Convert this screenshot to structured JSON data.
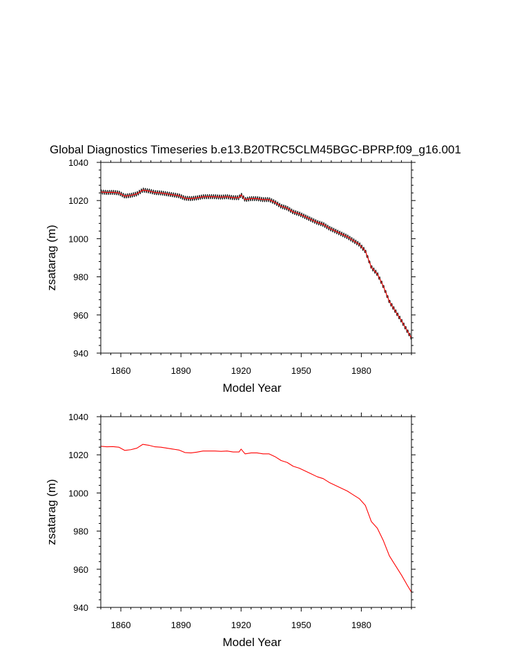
{
  "chart_data": [
    {
      "type": "line",
      "title": "Global Diagnostics Timeseries b.e13.B20TRC5CLM45BGC-BPRP.f09_g16.001",
      "xlabel": "Model Year",
      "ylabel": "zsatarag (m)",
      "xlim": [
        1850,
        2005
      ],
      "ylim": [
        940,
        1040
      ],
      "xticks": [
        1860,
        1890,
        1920,
        1950,
        1980
      ],
      "yticks": [
        940,
        960,
        980,
        1000,
        1020,
        1040
      ],
      "grid": false,
      "series": [
        {
          "role": "monthly",
          "color": "#000000",
          "seasonal_amplitude": 1.2,
          "x": [
            1850,
            1853,
            1856,
            1859,
            1862,
            1865,
            1868,
            1871,
            1874,
            1877,
            1880,
            1883,
            1886,
            1889,
            1892,
            1895,
            1898,
            1901,
            1904,
            1907,
            1910,
            1913,
            1916,
            1919,
            1920,
            1922,
            1925,
            1928,
            1931,
            1934,
            1937,
            1940,
            1943,
            1946,
            1949,
            1952,
            1955,
            1958,
            1961,
            1964,
            1967,
            1970,
            1973,
            1976,
            1979,
            1982,
            1985,
            1988,
            1991,
            1994,
            1997,
            2000,
            2003,
            2005
          ],
          "y": [
            1024.5,
            1024.2,
            1024.3,
            1024.0,
            1022.3,
            1022.7,
            1023.5,
            1025.5,
            1025.0,
            1024.2,
            1024.0,
            1023.5,
            1023.0,
            1022.5,
            1021.2,
            1021.0,
            1021.4,
            1022.0,
            1022.0,
            1022.0,
            1021.8,
            1022.0,
            1021.5,
            1021.5,
            1023.0,
            1020.5,
            1021.0,
            1021.0,
            1020.5,
            1020.5,
            1019.0,
            1017.0,
            1016.0,
            1014.0,
            1013.0,
            1011.5,
            1010.0,
            1008.5,
            1007.5,
            1005.5,
            1004.0,
            1002.5,
            1001.0,
            999.0,
            997.0,
            993.5,
            985.0,
            981.5,
            975.0,
            967.0,
            962.0,
            957.0,
            951.5,
            948.0
          ]
        },
        {
          "role": "annual",
          "color": "#ff0000",
          "x": [
            1850,
            1853,
            1856,
            1859,
            1862,
            1865,
            1868,
            1871,
            1874,
            1877,
            1880,
            1883,
            1886,
            1889,
            1892,
            1895,
            1898,
            1901,
            1904,
            1907,
            1910,
            1913,
            1916,
            1919,
            1920,
            1922,
            1925,
            1928,
            1931,
            1934,
            1937,
            1940,
            1943,
            1946,
            1949,
            1952,
            1955,
            1958,
            1961,
            1964,
            1967,
            1970,
            1973,
            1976,
            1979,
            1982,
            1985,
            1988,
            1991,
            1994,
            1997,
            2000,
            2003,
            2005
          ],
          "y": [
            1024.5,
            1024.2,
            1024.3,
            1024.0,
            1022.3,
            1022.7,
            1023.5,
            1025.5,
            1025.0,
            1024.2,
            1024.0,
            1023.5,
            1023.0,
            1022.5,
            1021.2,
            1021.0,
            1021.4,
            1022.0,
            1022.0,
            1022.0,
            1021.8,
            1022.0,
            1021.5,
            1021.5,
            1023.0,
            1020.5,
            1021.0,
            1021.0,
            1020.5,
            1020.5,
            1019.0,
            1017.0,
            1016.0,
            1014.0,
            1013.0,
            1011.5,
            1010.0,
            1008.5,
            1007.5,
            1005.5,
            1004.0,
            1002.5,
            1001.0,
            999.0,
            997.0,
            993.5,
            985.0,
            981.5,
            975.0,
            967.0,
            962.0,
            957.0,
            951.5,
            948.0
          ]
        }
      ]
    },
    {
      "type": "line",
      "title": "",
      "xlabel": "Model Year",
      "ylabel": "zsatarag (m)",
      "xlim": [
        1850,
        2005
      ],
      "ylim": [
        940,
        1040
      ],
      "xticks": [
        1860,
        1890,
        1920,
        1950,
        1980
      ],
      "yticks": [
        940,
        960,
        980,
        1000,
        1020,
        1040
      ],
      "grid": false,
      "series": [
        {
          "role": "annual",
          "color": "#ff0000",
          "x": [
            1850,
            1853,
            1856,
            1859,
            1862,
            1865,
            1868,
            1871,
            1874,
            1877,
            1880,
            1883,
            1886,
            1889,
            1892,
            1895,
            1898,
            1901,
            1904,
            1907,
            1910,
            1913,
            1916,
            1919,
            1920,
            1922,
            1925,
            1928,
            1931,
            1934,
            1937,
            1940,
            1943,
            1946,
            1949,
            1952,
            1955,
            1958,
            1961,
            1964,
            1967,
            1970,
            1973,
            1976,
            1979,
            1982,
            1985,
            1988,
            1991,
            1994,
            1997,
            2000,
            2003,
            2005
          ],
          "y": [
            1024.5,
            1024.2,
            1024.3,
            1024.0,
            1022.3,
            1022.7,
            1023.5,
            1025.5,
            1025.0,
            1024.2,
            1024.0,
            1023.5,
            1023.0,
            1022.5,
            1021.2,
            1021.0,
            1021.4,
            1022.0,
            1022.0,
            1022.0,
            1021.8,
            1022.0,
            1021.5,
            1021.5,
            1023.0,
            1020.5,
            1021.0,
            1021.0,
            1020.5,
            1020.5,
            1019.0,
            1017.0,
            1016.0,
            1014.0,
            1013.0,
            1011.5,
            1010.0,
            1008.5,
            1007.5,
            1005.5,
            1004.0,
            1002.5,
            1001.0,
            999.0,
            997.0,
            993.5,
            985.0,
            981.5,
            975.0,
            967.0,
            962.0,
            957.0,
            951.5,
            948.0
          ]
        }
      ]
    }
  ]
}
